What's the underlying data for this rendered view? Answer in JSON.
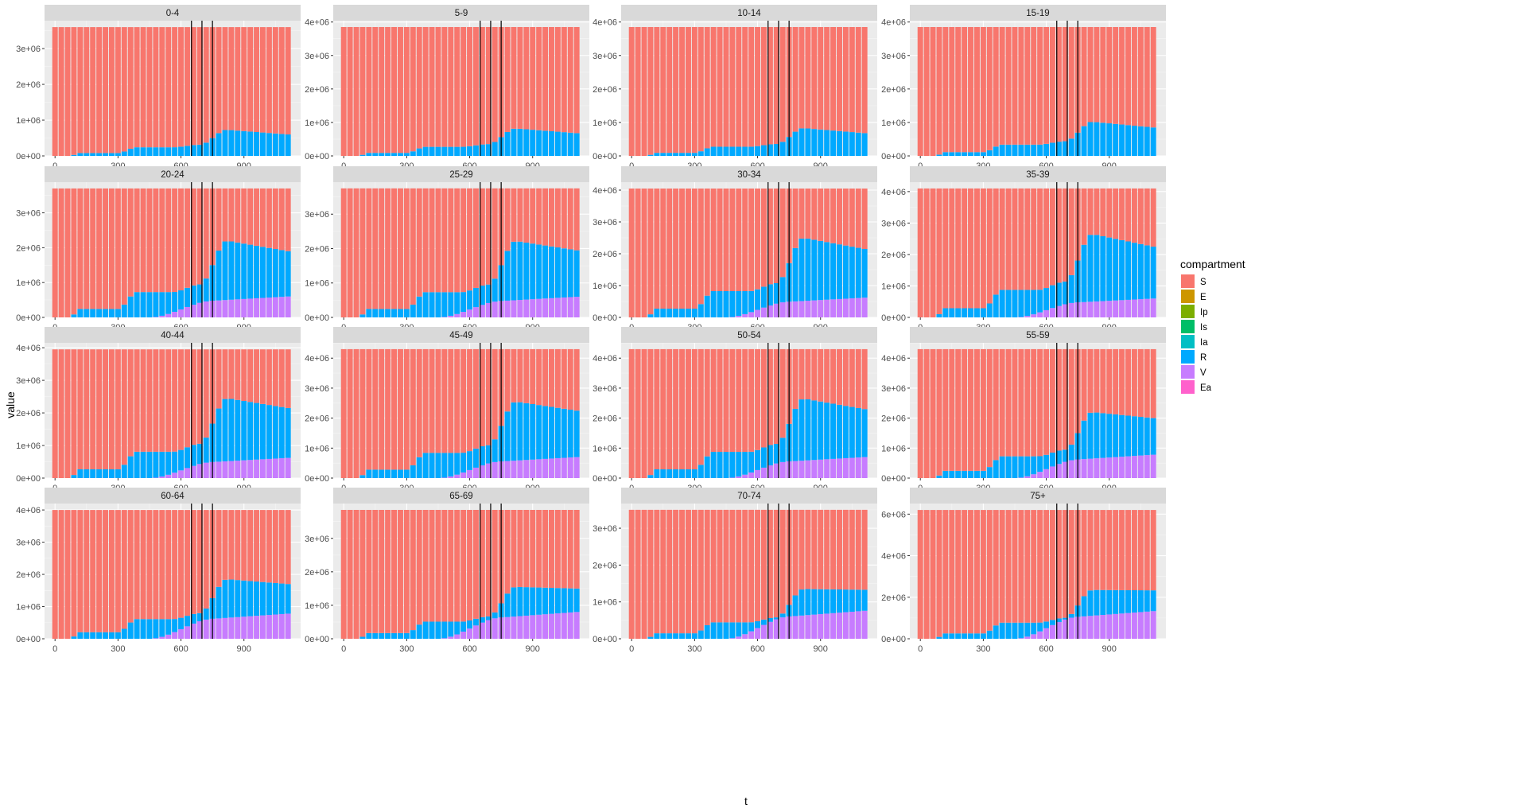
{
  "chart_data": {
    "type": "area",
    "layout": "facet_wrap 4x4, free y scales, stacked bars by compartment",
    "xlabel": "t",
    "ylabel": "value",
    "x_ticks": [
      0,
      300,
      600,
      900
    ],
    "x_range": [
      0,
      1120
    ],
    "grid": true,
    "vertical_lines_t": [
      650,
      700,
      750
    ],
    "legend": {
      "title": "compartment",
      "position": "right",
      "entries": [
        {
          "name": "S",
          "color": "#F8766D"
        },
        {
          "name": "E",
          "color": "#CD9600"
        },
        {
          "name": "Ip",
          "color": "#7CAE00"
        },
        {
          "name": "Is",
          "color": "#00BE67"
        },
        {
          "name": "Ia",
          "color": "#00BFC4"
        },
        {
          "name": "R",
          "color": "#00A9FF"
        },
        {
          "name": "V",
          "color": "#C77CFF"
        },
        {
          "name": "Ea",
          "color": "#FF61CC"
        }
      ]
    },
    "panels": [
      {
        "title": "0-4",
        "total": 3600000,
        "y_ticks": [
          "0e+00",
          "1e+06",
          "2e+06",
          "3e+06"
        ],
        "y_values": [
          0,
          1000000,
          2000000,
          3000000
        ],
        "ylim": [
          0,
          3780000
        ],
        "R_total_peak": 730000,
        "R_total_end": 600000,
        "V_end": 0
      },
      {
        "title": "5-9",
        "total": 3850000,
        "y_ticks": [
          "0e+00",
          "1e+06",
          "2e+06",
          "3e+06",
          "4e+06"
        ],
        "y_values": [
          0,
          1000000,
          2000000,
          3000000,
          4000000
        ],
        "ylim": [
          0,
          4040000
        ],
        "R_total_peak": 820000,
        "R_total_end": 680000,
        "V_end": 0
      },
      {
        "title": "10-14",
        "total": 3850000,
        "y_ticks": [
          "0e+00",
          "1e+06",
          "2e+06",
          "3e+06",
          "4e+06"
        ],
        "y_values": [
          0,
          1000000,
          2000000,
          3000000,
          4000000
        ],
        "ylim": [
          0,
          4040000
        ],
        "R_total_peak": 830000,
        "R_total_end": 680000,
        "V_end": 0
      },
      {
        "title": "15-19",
        "total": 3850000,
        "y_ticks": [
          "0e+00",
          "1e+06",
          "2e+06",
          "3e+06",
          "4e+06"
        ],
        "y_values": [
          0,
          1000000,
          2000000,
          3000000,
          4000000
        ],
        "ylim": [
          0,
          4040000
        ],
        "R_total_peak": 1020000,
        "R_total_end": 850000,
        "V_end": 0
      },
      {
        "title": "20-24",
        "total": 3700000,
        "y_ticks": [
          "0e+00",
          "1e+06",
          "2e+06",
          "3e+06"
        ],
        "y_values": [
          0,
          1000000,
          2000000,
          3000000
        ],
        "ylim": [
          0,
          3880000
        ],
        "R_total_peak": 2200000,
        "R_total_end": 1900000,
        "V_end": 600000
      },
      {
        "title": "25-29",
        "total": 3750000,
        "y_ticks": [
          "0e+00",
          "1e+06",
          "2e+06",
          "3e+06"
        ],
        "y_values": [
          0,
          1000000,
          2000000,
          3000000
        ],
        "ylim": [
          0,
          3930000
        ],
        "R_total_peak": 2220000,
        "R_total_end": 1950000,
        "V_end": 600000
      },
      {
        "title": "30-34",
        "total": 4050000,
        "y_ticks": [
          "0e+00",
          "1e+06",
          "2e+06",
          "3e+06",
          "4e+06"
        ],
        "y_values": [
          0,
          1000000,
          2000000,
          3000000,
          4000000
        ],
        "ylim": [
          0,
          4250000
        ],
        "R_total_peak": 2500000,
        "R_total_end": 2150000,
        "V_end": 620000
      },
      {
        "title": "35-39",
        "total": 4100000,
        "y_ticks": [
          "0e+00",
          "1e+06",
          "2e+06",
          "3e+06",
          "4e+06"
        ],
        "y_values": [
          0,
          1000000,
          2000000,
          3000000,
          4000000
        ],
        "ylim": [
          0,
          4300000
        ],
        "R_total_peak": 2650000,
        "R_total_end": 2250000,
        "V_end": 600000
      },
      {
        "title": "40-44",
        "total": 3950000,
        "y_ticks": [
          "0e+00",
          "1e+06",
          "2e+06",
          "3e+06",
          "4e+06"
        ],
        "y_values": [
          0,
          1000000,
          2000000,
          3000000,
          4000000
        ],
        "ylim": [
          0,
          4150000
        ],
        "R_total_peak": 2450000,
        "R_total_end": 2150000,
        "V_end": 620000
      },
      {
        "title": "45-49",
        "total": 4300000,
        "y_ticks": [
          "0e+00",
          "1e+06",
          "2e+06",
          "3e+06",
          "4e+06"
        ],
        "y_values": [
          0,
          1000000,
          2000000,
          3000000,
          4000000
        ],
        "ylim": [
          0,
          4510000
        ],
        "R_total_peak": 2550000,
        "R_total_end": 2250000,
        "V_end": 700000
      },
      {
        "title": "50-54",
        "total": 4300000,
        "y_ticks": [
          "0e+00",
          "1e+06",
          "2e+06",
          "3e+06",
          "4e+06"
        ],
        "y_values": [
          0,
          1000000,
          2000000,
          3000000,
          4000000
        ],
        "ylim": [
          0,
          4510000
        ],
        "R_total_peak": 2650000,
        "R_total_end": 2300000,
        "V_end": 700000
      },
      {
        "title": "55-59",
        "total": 4300000,
        "y_ticks": [
          "0e+00",
          "1e+06",
          "2e+06",
          "3e+06",
          "4e+06"
        ],
        "y_values": [
          0,
          1000000,
          2000000,
          3000000,
          4000000
        ],
        "ylim": [
          0,
          4510000
        ],
        "R_total_peak": 2200000,
        "R_total_end": 2000000,
        "V_end": 780000
      },
      {
        "title": "60-64",
        "total": 4000000,
        "y_ticks": [
          "0e+00",
          "1e+06",
          "2e+06",
          "3e+06",
          "4e+06"
        ],
        "y_values": [
          0,
          1000000,
          2000000,
          3000000,
          4000000
        ],
        "ylim": [
          0,
          4200000
        ],
        "R_total_peak": 1850000,
        "R_total_end": 1700000,
        "V_end": 780000
      },
      {
        "title": "65-69",
        "total": 3850000,
        "y_ticks": [
          "0e+00",
          "1e+06",
          "2e+06",
          "3e+06"
        ],
        "y_values": [
          0,
          1000000,
          2000000,
          3000000
        ],
        "ylim": [
          0,
          4040000
        ],
        "R_total_peak": 1550000,
        "R_total_end": 1500000,
        "V_end": 800000
      },
      {
        "title": "70-74",
        "total": 3500000,
        "y_ticks": [
          "0e+00",
          "1e+06",
          "2e+06",
          "3e+06"
        ],
        "y_values": [
          0,
          1000000,
          2000000,
          3000000
        ],
        "ylim": [
          0,
          3670000
        ],
        "R_total_peak": 1350000,
        "R_total_end": 1330000,
        "V_end": 760000
      },
      {
        "title": "75+",
        "total": 6200000,
        "y_ticks": [
          "0e+00",
          "2e+06",
          "4e+06",
          "6e+06"
        ],
        "y_values": [
          0,
          2000000,
          4000000,
          6000000
        ],
        "ylim": [
          0,
          6510000
        ],
        "R_total_peak": 2350000,
        "R_total_end": 2330000,
        "V_end": 1330000
      }
    ]
  }
}
